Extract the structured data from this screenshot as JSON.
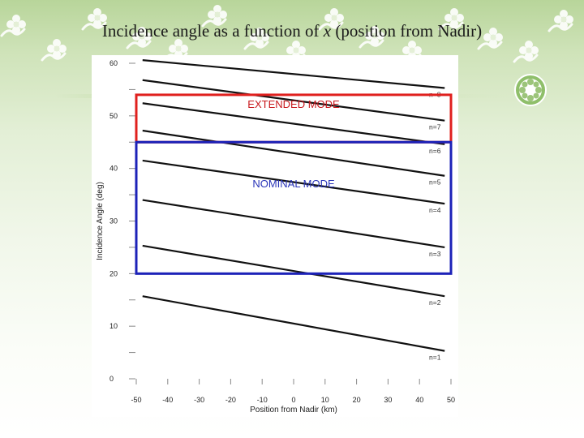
{
  "slide": {
    "title_prefix": "Incidence angle as a function of ",
    "title_var": "x",
    "title_suffix": " (position from Nadir)"
  },
  "chart_data": {
    "type": "line",
    "xlabel": "Position from Nadir (km)",
    "ylabel": "Incidence Angle (deg)",
    "xlim": [
      -50,
      50
    ],
    "ylim": [
      0,
      60
    ],
    "x_ticks": [
      "-50",
      "-40",
      "-30",
      "-20",
      "-10",
      "0",
      "10",
      "20",
      "30",
      "40",
      "50"
    ],
    "y_ticks": [
      "0",
      "10",
      "20",
      "30",
      "40",
      "50",
      "60"
    ],
    "x_tick_values": [
      -50,
      -40,
      -30,
      -20,
      -10,
      0,
      10,
      20,
      30,
      40,
      50
    ],
    "y_tick_values": [
      0,
      10,
      20,
      30,
      40,
      50,
      60
    ],
    "grid": false,
    "series": [
      {
        "name": "n=1",
        "x": [
          -48,
          48
        ],
        "y": [
          15.7,
          5.3
        ]
      },
      {
        "name": "n=2",
        "x": [
          -48,
          48
        ],
        "y": [
          25.3,
          15.7
        ]
      },
      {
        "name": "n=3",
        "x": [
          -48,
          48
        ],
        "y": [
          34,
          25
        ]
      },
      {
        "name": "n=4",
        "x": [
          -48,
          48
        ],
        "y": [
          41.5,
          33.3
        ]
      },
      {
        "name": "n=5",
        "x": [
          -48,
          48
        ],
        "y": [
          47.2,
          38.6
        ]
      },
      {
        "name": "n=6",
        "x": [
          -48,
          48
        ],
        "y": [
          52.4,
          44.6
        ]
      },
      {
        "name": "n=7",
        "x": [
          -48,
          48
        ],
        "y": [
          56.8,
          49.1
        ]
      },
      {
        "name": "n=8",
        "x": [
          -48,
          48
        ],
        "y": [
          60.6,
          55.3
        ]
      }
    ],
    "regions": [
      {
        "label": "EXTENDED MODE",
        "color": "#e0201e",
        "text_color": "#c8181c",
        "x": [
          -50,
          50
        ],
        "y": [
          45,
          54
        ]
      },
      {
        "label": "NOMINAL MODE",
        "color": "#1c22b8",
        "text_color": "#2a35b8",
        "x": [
          -50,
          50
        ],
        "y": [
          20,
          45
        ]
      }
    ]
  }
}
